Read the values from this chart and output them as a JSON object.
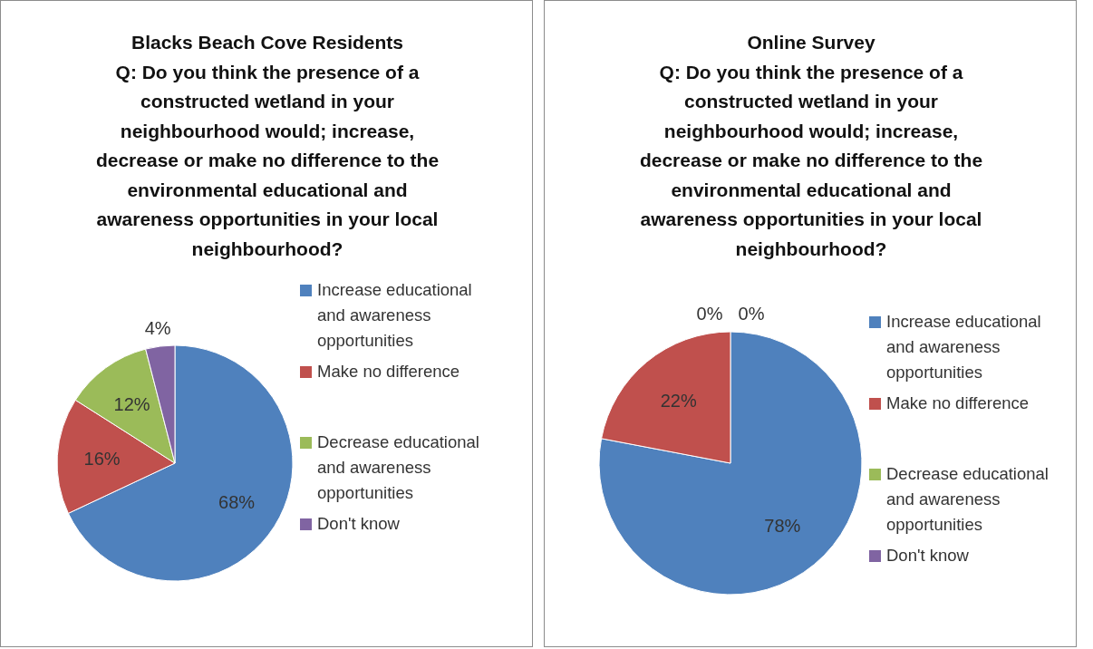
{
  "chart_data": [
    {
      "type": "pie",
      "title": "Blacks Beach Cove Residents",
      "subtitle": "Q: Do you think the presence of a constructed wetland in your neighbourhood would; increase, decrease or make no difference to the environmental educational and awareness opportunities in your local neighbourhood?",
      "categories": [
        "Increase educational and awareness opportunities",
        "Make no difference",
        "Decrease educational and awareness opportunities",
        "Don't know"
      ],
      "values": [
        68,
        16,
        12,
        4
      ],
      "value_labels": [
        "68%",
        "16%",
        "12%",
        "4%"
      ],
      "colors": [
        "#4f81bd",
        "#c0504d",
        "#9bbb59",
        "#8064a2"
      ],
      "legend": "right"
    },
    {
      "type": "pie",
      "title": "Online Survey",
      "subtitle": "Q: Do you think the presence of a constructed wetland in your neighbourhood would; increase, decrease or make no difference to the environmental educational and awareness opportunities in your local neighbourhood?",
      "categories": [
        "Increase educational and awareness opportunities",
        "Make no difference",
        "Decrease educational and awareness opportunities",
        "Don't know"
      ],
      "values": [
        78,
        22,
        0,
        0
      ],
      "value_labels": [
        "78%",
        "22%",
        "0%",
        "0%"
      ],
      "colors": [
        "#4f81bd",
        "#c0504d",
        "#9bbb59",
        "#8064a2"
      ],
      "legend": "right"
    }
  ]
}
